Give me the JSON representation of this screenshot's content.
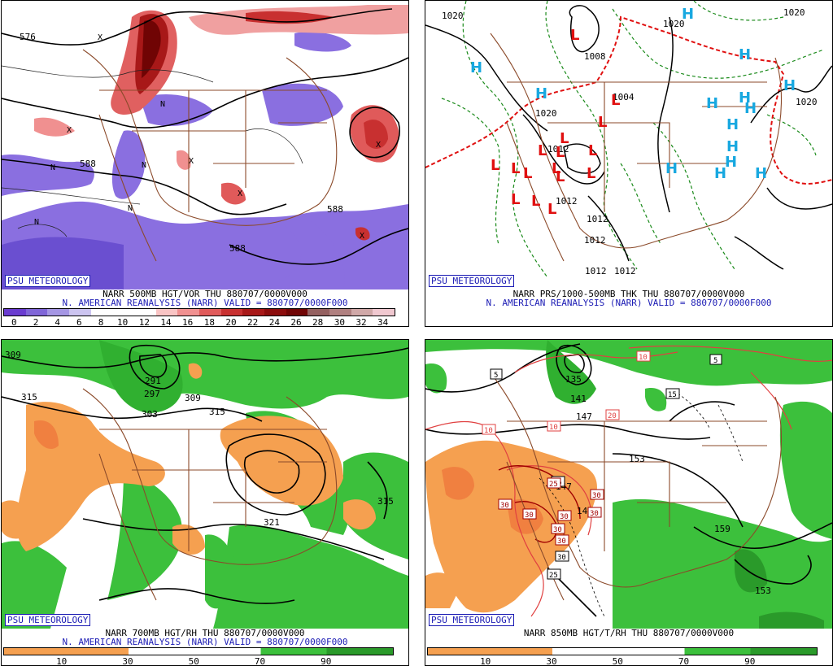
{
  "panels": [
    {
      "id": "p1",
      "badge": "PSU METEOROLOGY",
      "title_line1": "NARR 500MB HGT/VOR THU 880707/0000V000",
      "title_line2": "N. AMERICAN REANALYSIS (NARR) VALID = 880707/0000F000",
      "colorbar": {
        "colors": [
          "#6a3cd0",
          "#8066d8",
          "#a596e4",
          "#ccc4f0",
          "#ffffff",
          "#ffffff",
          "#ffffff",
          "#f9c4c4",
          "#f09090",
          "#e05a5a",
          "#c83030",
          "#a81818",
          "#8c0c0c",
          "#700404",
          "#946060",
          "#b08080",
          "#d0a8a8",
          "#f0c8d0"
        ],
        "ticks": [
          "0",
          "2",
          "4",
          "6",
          "8",
          "10",
          "12",
          "14",
          "16",
          "18",
          "20",
          "22",
          "24",
          "26",
          "28",
          "30",
          "32",
          "34"
        ]
      },
      "labels": [
        "576",
        "588",
        "588",
        "588"
      ],
      "markers": [
        "X",
        "X",
        "X",
        "X",
        "X",
        "X",
        "N",
        "N",
        "N",
        "N",
        "N"
      ]
    },
    {
      "id": "p2",
      "badge": "PSU METEOROLOGY",
      "title_line1": "NARR PRS/1000-500MB THK THU 880707/0000V000",
      "title_line2": "N. AMERICAN REANALYSIS (NARR) VALID = 880707/0000F000",
      "labels": [
        "1020",
        "1020",
        "1020",
        "1008",
        "1012",
        "1012",
        "1012",
        "1012",
        "1012",
        "1012",
        "1020",
        "1020",
        "1004"
      ],
      "highs": [
        "H",
        "H",
        "H",
        "H",
        "H",
        "H",
        "H",
        "H",
        "H",
        "H",
        "H",
        "H",
        "H",
        "H"
      ],
      "lows": [
        "L",
        "L",
        "L",
        "L",
        "L",
        "L",
        "L",
        "L",
        "L",
        "L",
        "L",
        "L",
        "L",
        "L",
        "L",
        "L"
      ]
    },
    {
      "id": "p3",
      "badge": "PSU METEOROLOGY",
      "title_line1": "NARR 700MB HGT/RH THU 880707/0000V000",
      "title_line2": "N. AMERICAN REANALYSIS (NARR) VALID = 880707/0000F000",
      "colorbar": {
        "ticks": [
          "10",
          "30",
          "50",
          "70",
          "90"
        ]
      },
      "labels": [
        "309",
        "315",
        "297",
        "291",
        "303",
        "309",
        "315",
        "321",
        "315"
      ]
    },
    {
      "id": "p4",
      "badge": "PSU METEOROLOGY",
      "title_line1": "NARR 850MB HGT/T/RH THU 880707/0000V000",
      "title_line2": "",
      "colorbar": {
        "ticks": [
          "10",
          "30",
          "50",
          "70",
          "90"
        ]
      },
      "labels": [
        "135",
        "141",
        "147",
        "153",
        "147",
        "141",
        "159",
        "153"
      ],
      "temps": [
        "5",
        "10",
        "5",
        "10",
        "20",
        "15",
        "10",
        "25",
        "30",
        "30",
        "30",
        "30",
        "30",
        "30",
        "30",
        "25",
        "30",
        "25"
      ]
    }
  ]
}
